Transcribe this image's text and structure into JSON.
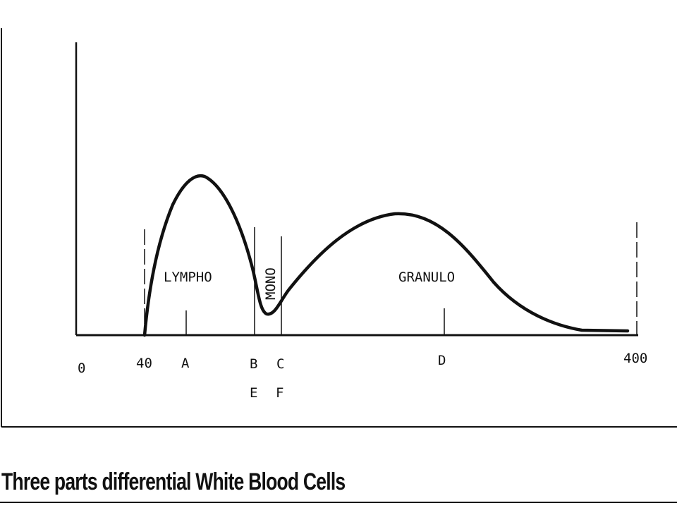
{
  "diagram": {
    "title": "Three parts differential White Blood Cells",
    "regions": {
      "lympho": "LYMPHO",
      "mono": "MONO",
      "granulo": "GRANULO"
    },
    "axis_labels": {
      "zero": "0",
      "forty": "40",
      "a": "A",
      "b": "B",
      "c": "C",
      "d": "D",
      "e": "E",
      "f": "F",
      "four_hundred": "400"
    },
    "colors": {
      "ink": "#111111",
      "background": "#ffffff"
    }
  }
}
